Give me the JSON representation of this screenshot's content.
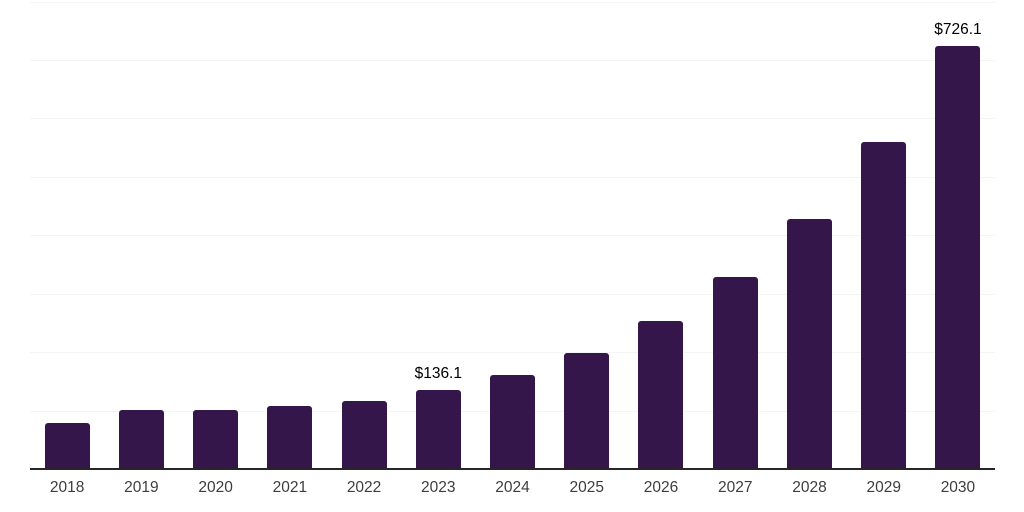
{
  "chart_data": {
    "type": "bar",
    "title": "",
    "xlabel": "",
    "ylabel": "",
    "categories": [
      "2018",
      "2019",
      "2020",
      "2021",
      "2022",
      "2023",
      "2024",
      "2025",
      "2026",
      "2027",
      "2028",
      "2029",
      "2030"
    ],
    "values": [
      81,
      103,
      102,
      110,
      118,
      136.1,
      162,
      200,
      255,
      331,
      430,
      562,
      726.1
    ],
    "value_labels": {
      "2023": "$136.1",
      "2030": "$726.1"
    },
    "ylim": [
      0,
      800
    ],
    "grid_interval": 100,
    "grid": "horizontal",
    "y_axis_tick_labels": "none",
    "legend": "none",
    "colors": {
      "bar": "#35164A",
      "gridline": "#f4f4f4",
      "axis_line": "#262626",
      "tick_label": "#3d3d3d",
      "value_label": "#000000",
      "background": "#ffffff"
    }
  }
}
